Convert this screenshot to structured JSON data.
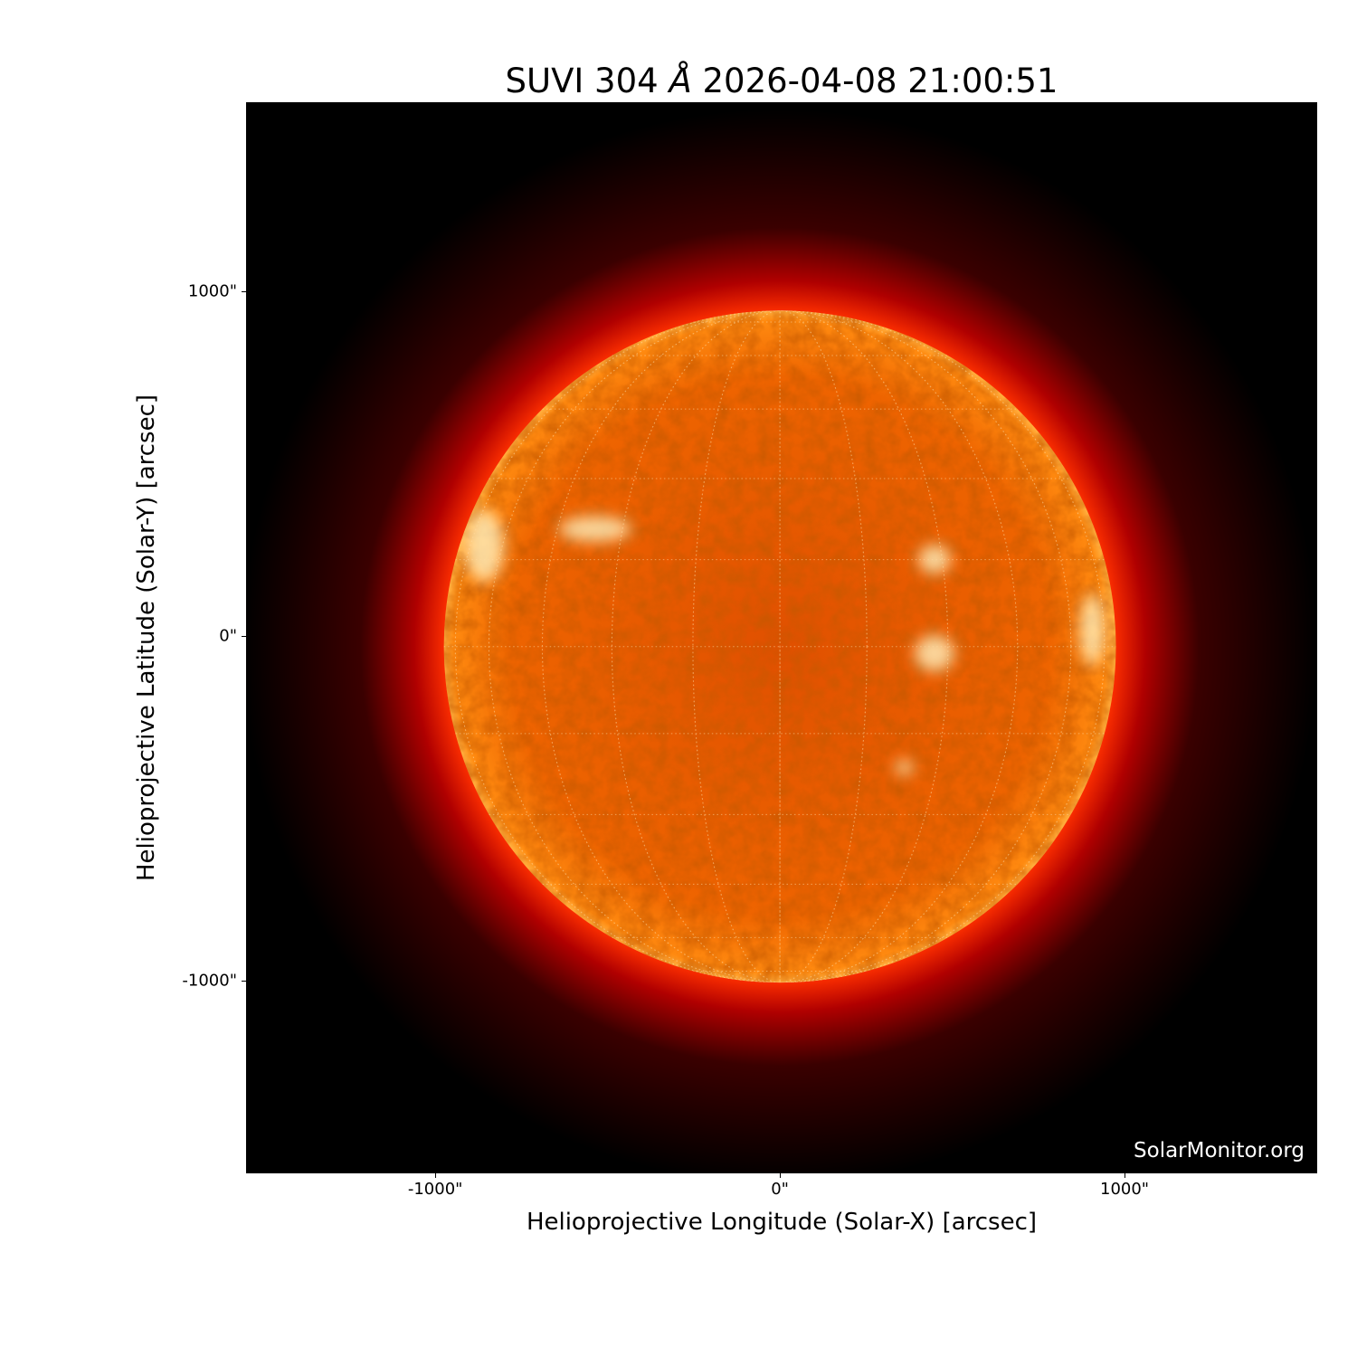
{
  "title": {
    "prefix": "SUVI 304 ",
    "unit": "Å",
    "suffix": " 2026-04-08 21:00:51"
  },
  "xlabel": "Helioprojective Longitude (Solar-X) [arcsec]",
  "ylabel": "Helioprojective Latitude (Solar-Y) [arcsec]",
  "watermark": "SolarMonitor.org",
  "xticks": [
    {
      "value": -1000,
      "label": "-1000\""
    },
    {
      "value": 0,
      "label": "0\""
    },
    {
      "value": 1000,
      "label": "1000\""
    }
  ],
  "yticks": [
    {
      "value": 1000,
      "label": "1000\""
    },
    {
      "value": 0,
      "label": "0\""
    },
    {
      "value": -1000,
      "label": "-1000\""
    }
  ],
  "xlim": [
    -1549,
    1559
  ],
  "ylim": [
    -1558,
    1549
  ],
  "sun": {
    "center_arcsec": [
      0,
      -30
    ],
    "radius_arcsec": 975,
    "grid_step_deg": 15
  },
  "colors": {
    "background": "#000000",
    "disk": "#e85a00",
    "limb": "#ff9a20",
    "corona": "#a00000",
    "grid": "#ffd9a0"
  }
}
